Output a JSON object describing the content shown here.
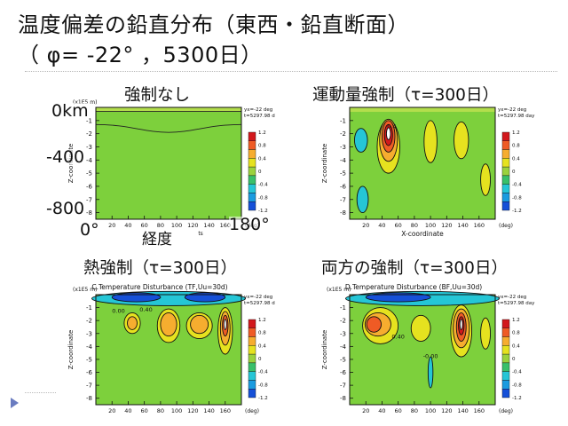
{
  "slide": {
    "title_line1": "温度偏差の鉛直分布（東西・鉛直断面）",
    "title_line2": "（ φ= -22° ，5300日）"
  },
  "colors": {
    "level_colors": [
      "#1650d8",
      "#1a9be0",
      "#25c6d6",
      "#39c06a",
      "#9bd23d",
      "#e6e21f",
      "#f6ad2f",
      "#ef5b25",
      "#d2181c"
    ],
    "background_level": "#7dd03c"
  },
  "chart_data": [
    {
      "type": "heatmap",
      "title": "強制なし",
      "axis_title": "",
      "xlabel": "経度",
      "xlabel_small": "ts",
      "ylabel": "Z-coordinate",
      "y_scale_label": "(x1E5 m)",
      "x_unit": "(deg)",
      "x_ticks": [
        20,
        40,
        60,
        80,
        100,
        120,
        140,
        160
      ],
      "y_ticks": [
        -1,
        -2,
        -3,
        -4,
        -5,
        -6,
        -7,
        -8
      ],
      "xlim": [
        0,
        180
      ],
      "ylim": [
        -8.5,
        0
      ],
      "overlays": {
        "y_top": "0km",
        "y_mid": "-400",
        "y_low": "-800",
        "x_left": "0°",
        "x_right": "180°"
      },
      "info": [
        "yx=-22 deg",
        "t=5297.98 day"
      ],
      "colorbar": {
        "ticks": [
          "1.2",
          "0.8",
          "0.4",
          "0",
          "-0.4",
          "-0.8",
          "-1.2"
        ]
      },
      "blobs": [],
      "contour_labels": []
    },
    {
      "type": "heatmap",
      "title": "運動量強制（τ=300日）",
      "axis_title": "",
      "xlabel": "X-coordinate",
      "ylabel": "Z-coordinate",
      "y_scale_label": "",
      "x_unit": "(deg)",
      "x_ticks": [
        20,
        40,
        60,
        80,
        100,
        120,
        140,
        160
      ],
      "y_ticks": [
        -1,
        -2,
        -3,
        -4,
        -5,
        -6,
        -7,
        -8
      ],
      "xlim": [
        0,
        180
      ],
      "ylim": [
        -8.5,
        0
      ],
      "info": [
        "yx=-22 deg",
        "t=5297.98 day"
      ],
      "colorbar": {
        "ticks": [
          "1.2",
          "0.8",
          "0.4",
          "0",
          "-0.4",
          "-0.8",
          "-1.2"
        ]
      },
      "blobs": [
        {
          "x": 48,
          "z": -3.0,
          "rx": 14,
          "rz": 2.0,
          "level": "yellow"
        },
        {
          "x": 48,
          "z": -2.5,
          "rx": 11,
          "rz": 1.6,
          "level": "orange"
        },
        {
          "x": 48,
          "z": -2.2,
          "rx": 8,
          "rz": 1.2,
          "level": "red"
        },
        {
          "x": 48,
          "z": -2.1,
          "rx": 5,
          "rz": 0.8,
          "level": "darkred"
        },
        {
          "x": 48,
          "z": -2.0,
          "rx": 2.5,
          "rz": 0.45,
          "level": "white"
        },
        {
          "x": 100,
          "z": -2.6,
          "rx": 8,
          "rz": 1.6,
          "level": "yellow"
        },
        {
          "x": 138,
          "z": -2.5,
          "rx": 9,
          "rz": 1.4,
          "level": "yellow"
        },
        {
          "x": 14,
          "z": -2.5,
          "rx": 8,
          "rz": 0.9,
          "level": "teal"
        },
        {
          "x": 16,
          "z": -7.0,
          "rx": 7,
          "rz": 1.0,
          "level": "teal"
        },
        {
          "x": 168,
          "z": -5.5,
          "rx": 6,
          "rz": 1.2,
          "level": "yellow"
        }
      ],
      "contour_labels": [
        {
          "x": 52,
          "z": -1.6,
          "text": "0.4"
        }
      ]
    },
    {
      "type": "heatmap",
      "title": "熱強制（τ=300日）",
      "axis_title": "C.Temperature Disturbance (TF,Uu=30d)",
      "xlabel": "",
      "ylabel": "Z-coordinate",
      "y_scale_label": "(x1E5 m)",
      "x_unit": "(deg)",
      "x_ticks": [
        20,
        40,
        60,
        80,
        100,
        120,
        140,
        160
      ],
      "y_ticks": [
        -1,
        -2,
        -3,
        -4,
        -5,
        -6,
        -7,
        -8
      ],
      "xlim": [
        0,
        180
      ],
      "ylim": [
        -8.5,
        0
      ],
      "info": [
        "yx=-22 deg",
        "t=5297.98 day"
      ],
      "colorbar": {
        "ticks": [
          "1.2",
          "0.8",
          "0.4",
          "0",
          "-0.4",
          "-0.8",
          "-1.2"
        ]
      },
      "blobs": [
        {
          "x": 90,
          "z": -0.3,
          "rx": 95,
          "rz": 0.55,
          "level": "teal"
        },
        {
          "x": 50,
          "z": -0.2,
          "rx": 30,
          "rz": 0.35,
          "level": "blue"
        },
        {
          "x": 135,
          "z": -0.2,
          "rx": 25,
          "rz": 0.35,
          "level": "blue"
        },
        {
          "x": 45,
          "z": -2.2,
          "rx": 10,
          "rz": 0.8,
          "level": "yellow"
        },
        {
          "x": 45,
          "z": -2.2,
          "rx": 6,
          "rz": 0.5,
          "level": "orange"
        },
        {
          "x": 90,
          "z": -2.4,
          "rx": 14,
          "rz": 1.3,
          "level": "yellow"
        },
        {
          "x": 90,
          "z": -2.3,
          "rx": 10,
          "rz": 0.9,
          "level": "orange"
        },
        {
          "x": 128,
          "z": -2.4,
          "rx": 16,
          "rz": 1.0,
          "level": "yellow"
        },
        {
          "x": 128,
          "z": -2.3,
          "rx": 11,
          "rz": 0.7,
          "level": "orange"
        },
        {
          "x": 160,
          "z": -2.8,
          "rx": 9,
          "rz": 1.8,
          "level": "yellow"
        },
        {
          "x": 160,
          "z": -2.6,
          "rx": 6,
          "rz": 1.3,
          "level": "orange"
        },
        {
          "x": 160,
          "z": -2.4,
          "rx": 3.5,
          "rz": 0.8,
          "level": "red"
        },
        {
          "x": 160,
          "z": -2.3,
          "rx": 1.6,
          "rz": 0.4,
          "level": "white"
        }
      ],
      "contour_labels": [
        {
          "x": 28,
          "z": -1.4,
          "text": "0.00"
        },
        {
          "x": 62,
          "z": -1.3,
          "text": "0.40"
        }
      ]
    },
    {
      "type": "heatmap",
      "title": "両方の強制（τ=300日）",
      "axis_title": "D.Temperature Disturbance (BF,Uu=30d)",
      "xlabel": "",
      "ylabel": "Z-coordinate",
      "y_scale_label": "(x1E5 m)",
      "x_unit": "(deg)",
      "x_ticks": [
        20,
        40,
        60,
        80,
        100,
        120,
        140,
        160
      ],
      "y_ticks": [
        -1,
        -2,
        -3,
        -4,
        -5,
        -6,
        -7,
        -8
      ],
      "xlim": [
        0,
        180
      ],
      "ylim": [
        -8.5,
        0
      ],
      "info": [
        "yx=-22 deg",
        "t=5297.98 day"
      ],
      "colorbar": {
        "ticks": [
          "1.2",
          "0.8",
          "0.4",
          "0",
          "-0.4",
          "-0.8",
          "-1.2"
        ]
      },
      "blobs": [
        {
          "x": 90,
          "z": -0.3,
          "rx": 95,
          "rz": 0.55,
          "level": "teal"
        },
        {
          "x": 60,
          "z": -0.2,
          "rx": 40,
          "rz": 0.35,
          "level": "blue"
        },
        {
          "x": 38,
          "z": -2.4,
          "rx": 22,
          "rz": 1.4,
          "level": "yellow"
        },
        {
          "x": 35,
          "z": -2.3,
          "rx": 16,
          "rz": 0.9,
          "level": "orange"
        },
        {
          "x": 30,
          "z": -2.3,
          "rx": 9,
          "rz": 0.6,
          "level": "red"
        },
        {
          "x": 88,
          "z": -2.6,
          "rx": 12,
          "rz": 1.0,
          "level": "yellow"
        },
        {
          "x": 138,
          "z": -2.8,
          "rx": 13,
          "rz": 2.0,
          "level": "yellow"
        },
        {
          "x": 138,
          "z": -2.6,
          "rx": 10,
          "rz": 1.5,
          "level": "orange"
        },
        {
          "x": 138,
          "z": -2.5,
          "rx": 6,
          "rz": 1.1,
          "level": "red"
        },
        {
          "x": 138,
          "z": -2.4,
          "rx": 3.5,
          "rz": 0.7,
          "level": "darkred"
        },
        {
          "x": 138,
          "z": -2.3,
          "rx": 1.6,
          "rz": 0.4,
          "level": "white"
        },
        {
          "x": 100,
          "z": -6.0,
          "rx": 3,
          "rz": 1.2,
          "level": "teal"
        },
        {
          "x": 168,
          "z": -3.0,
          "rx": 6,
          "rz": 1.2,
          "level": "yellow"
        }
      ],
      "contour_labels": [
        {
          "x": 60,
          "z": -3.4,
          "text": "0.40"
        },
        {
          "x": 100,
          "z": -4.9,
          "text": "-0.00"
        }
      ]
    }
  ]
}
